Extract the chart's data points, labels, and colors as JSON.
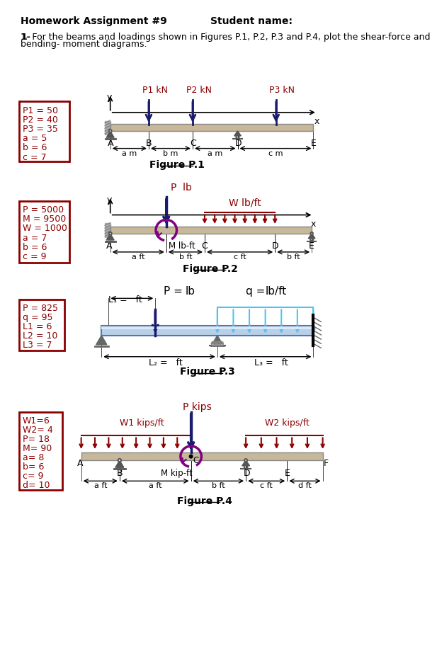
{
  "title_left": "Homework Assignment #9",
  "title_right": "Student name:",
  "problem_line1": "1- For the beams and loadings shown in Figures P.1, P.2, P.3 and P.4, plot the shear-force and",
  "problem_line2": "bending- moment diagrams.",
  "fig1_box_lines": [
    "P1 = 50",
    "P2 = 40",
    "P3 = 35",
    "a = 5",
    "b = 6",
    "c = 7"
  ],
  "fig1_load_labels": [
    "P1 kN",
    "P2 kN",
    "P3 kN"
  ],
  "fig1_node_labels": [
    "A",
    "B",
    "C",
    "D",
    "E"
  ],
  "fig1_dim_labels": [
    "a m",
    "b m",
    "a m",
    "c m"
  ],
  "fig1_caption": "Figure P.1",
  "fig2_box_lines": [
    "P = 5000",
    "M = 9500",
    "W = 1000",
    "a = 7",
    "b = 6",
    "c = 9"
  ],
  "fig2_load_label": "P  lb",
  "fig2_dist_label": "W lb/ft",
  "fig2_moment_label": "M lb-ft",
  "fig2_node_labels": [
    "A",
    "C",
    "D",
    "E"
  ],
  "fig2_dim_labels": [
    "a ft",
    "b ft",
    "c ft",
    "b ft"
  ],
  "fig2_caption": "Figure P.2",
  "fig3_box_lines": [
    "P = 825",
    "q = 95",
    "L1 = 6",
    "L2 = 10",
    "L3 = 7"
  ],
  "fig3_P_label": "P =",
  "fig3_P_unit": "lb",
  "fig3_q_label": "q =",
  "fig3_q_unit": "lb/ft",
  "fig3_L1_label": "L₁ =   ft",
  "fig3_L2_label": "L₂ =   ft",
  "fig3_L3_label": "L₃ =   ft",
  "fig3_caption": "Figure P.3",
  "fig4_box_lines": [
    "W1=6",
    "W2= 4",
    "P= 18",
    "M= 90",
    "a= 8",
    "b= 6",
    "c= 9",
    "d= 10"
  ],
  "fig4_W1_label": "W1 kips/ft",
  "fig4_W2_label": "W2 kips/ft",
  "fig4_P_label": "P kips",
  "fig4_M_label": "M kip-ft",
  "fig4_node_labels": [
    "A",
    "B",
    "C",
    "D",
    "E",
    "F"
  ],
  "fig4_dim_labels": [
    "a ft",
    "a ft",
    "b ft",
    "c ft",
    "d ft"
  ],
  "fig4_caption": "Figure P.4",
  "bg_color": "#ffffff",
  "box_color": "#8B0000",
  "beam_color": "#c8b89a",
  "beam_edge": "#888888",
  "load_arrow_color": "#1a1a6e",
  "dist_load_color": "#8B0000",
  "fig3_load_color": "#4fc3f7",
  "support_color": "#555555",
  "text_color": "#000000",
  "red_text": "#8B0000",
  "moment_color": "#800080"
}
